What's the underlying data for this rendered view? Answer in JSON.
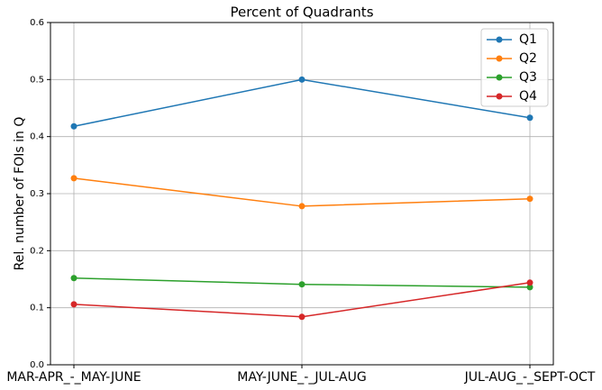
{
  "chart_data": {
    "type": "line",
    "title": "Percent of Quadrants",
    "y_label": "Rel. number of FOIs in Q",
    "categories": [
      "MAR-APR_-_MAY-JUNE",
      "MAY-JUNE_-_JUL-AUG",
      "JUL-AUG_-_SEPT-OCT"
    ],
    "series": [
      {
        "name": "Q1",
        "color": "#1f77b4",
        "values": [
          0.418,
          0.5,
          0.433
        ]
      },
      {
        "name": "Q2",
        "color": "#ff7f0e",
        "values": [
          0.327,
          0.278,
          0.291
        ]
      },
      {
        "name": "Q3",
        "color": "#2ca02c",
        "values": [
          0.152,
          0.141,
          0.136
        ]
      },
      {
        "name": "Q4",
        "color": "#d62728",
        "values": [
          0.106,
          0.084,
          0.144
        ]
      }
    ],
    "ylim": [
      0,
      0.6
    ],
    "yticks": [
      {
        "value": 0,
        "label": "0.0"
      },
      0.1,
      0.2,
      0.3,
      0.4,
      0.5,
      0.6
    ],
    "grid": true,
    "legend": "upper right"
  }
}
